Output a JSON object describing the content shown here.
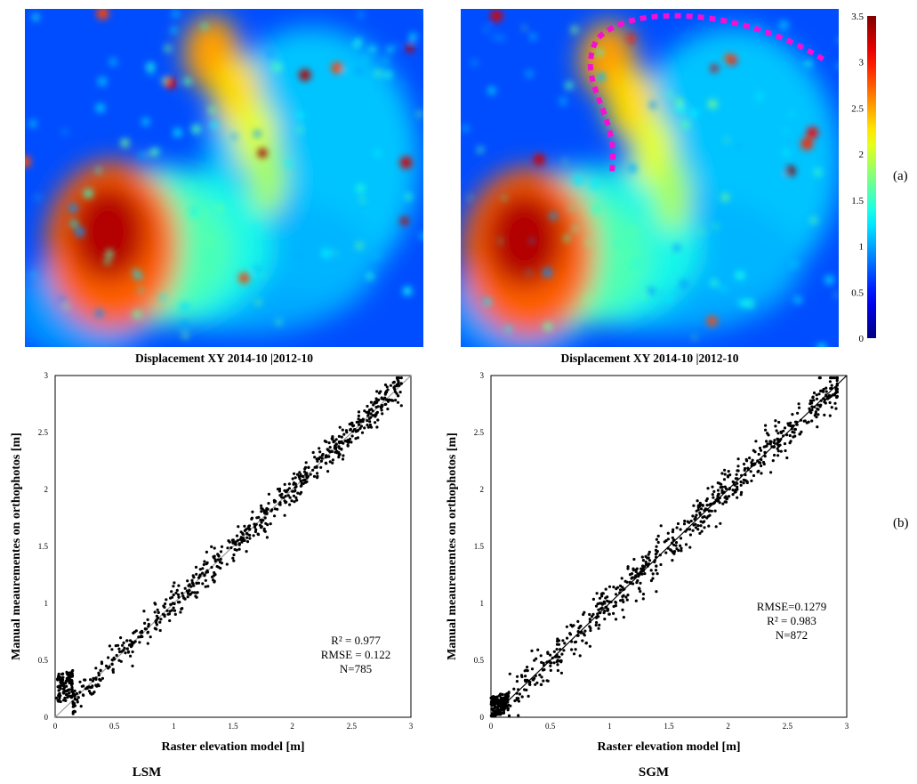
{
  "figure": {
    "panel_a_tag": "(a)",
    "panel_b_tag": "(b)",
    "method_left": "LSM",
    "method_right": "SGM"
  },
  "maps": [
    {
      "caption": "Displacement XY 2014-10 |2012-10",
      "highlight_color": "#f50fd2"
    },
    {
      "caption": "Displacement XY 2014-10 |2012-10",
      "highlight_color": "#f50fd2"
    }
  ],
  "colorbar": {
    "ticks": [
      "0",
      "0.5",
      "1",
      "1.5",
      "2",
      "2.5",
      "3",
      "3.5"
    ],
    "min": 0,
    "max": 3.5,
    "colormap": [
      "#00007f",
      "#0000ff",
      "#00ffff",
      "#ffff00",
      "#ff0000",
      "#7f0000"
    ]
  },
  "chart_data": [
    {
      "type": "scatter",
      "xlabel": "Raster elevation model [m]",
      "ylabel": "Manual meaurementes on orthophotos [m]",
      "xlim": [
        0,
        3
      ],
      "ylim": [
        0,
        3
      ],
      "xticks": [
        "0",
        "0.5",
        "1",
        "1.5",
        "2",
        "2.5",
        "3"
      ],
      "yticks": [
        "0",
        "0.5",
        "1",
        "1.5",
        "2",
        "2.5",
        "3"
      ],
      "fit_line": {
        "slope": 1.0,
        "intercept": 0.0,
        "color": "#999999"
      },
      "stats": [
        "R² = 0.977",
        "RMSE = 0.122",
        "N=785"
      ],
      "n_points": 785,
      "point_color": "#000000",
      "sample_points": [
        [
          0.05,
          0.2
        ],
        [
          0.1,
          0.3
        ],
        [
          0.5,
          0.6
        ],
        [
          1.0,
          1.05
        ],
        [
          1.5,
          1.6
        ],
        [
          2.0,
          2.05
        ],
        [
          2.5,
          2.55
        ],
        [
          2.9,
          2.95
        ]
      ]
    },
    {
      "type": "scatter",
      "xlabel": "Raster elevation model [m]",
      "ylabel": "Manual meaurementes on orthophotos [m]",
      "xlim": [
        0,
        3
      ],
      "ylim": [
        0,
        3
      ],
      "xticks": [
        "0",
        "0.5",
        "1",
        "1.5",
        "2",
        "2.5",
        "3"
      ],
      "yticks": [
        "0",
        "0.5",
        "1",
        "1.5",
        "2",
        "2.5",
        "3"
      ],
      "fit_line": {
        "slope": 1.0,
        "intercept": 0.0,
        "color": "#000000"
      },
      "stats": [
        "RMSE=0.1279",
        "R² = 0.983",
        "N=872"
      ],
      "n_points": 872,
      "point_color": "#000000",
      "sample_points": [
        [
          0.05,
          0.05
        ],
        [
          0.2,
          0.1
        ],
        [
          0.5,
          0.55
        ],
        [
          1.0,
          1.1
        ],
        [
          1.5,
          1.6
        ],
        [
          2.0,
          2.1
        ],
        [
          2.5,
          2.55
        ],
        [
          2.85,
          2.9
        ]
      ]
    }
  ]
}
